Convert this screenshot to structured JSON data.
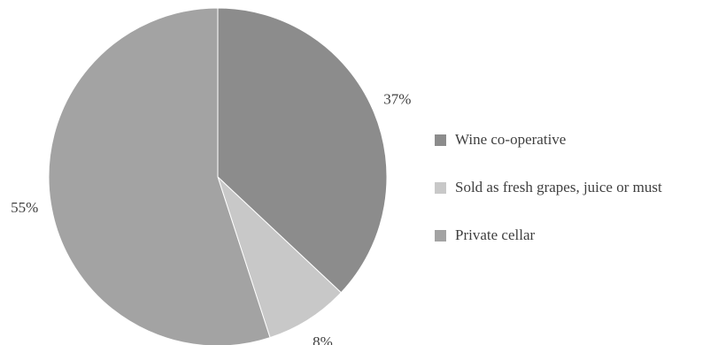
{
  "chart_data": {
    "type": "pie",
    "title": "",
    "categories": [
      "Wine co-operative",
      "Sold as fresh grapes, juice or must",
      "Private cellar"
    ],
    "values": [
      37,
      8,
      55
    ],
    "value_labels": [
      "37%",
      "8%",
      "55%"
    ],
    "colors": [
      "#8c8c8c",
      "#c8c8c8",
      "#a3a3a3"
    ],
    "start": "top (12 o'clock), clockwise",
    "legend_placement": "right"
  }
}
